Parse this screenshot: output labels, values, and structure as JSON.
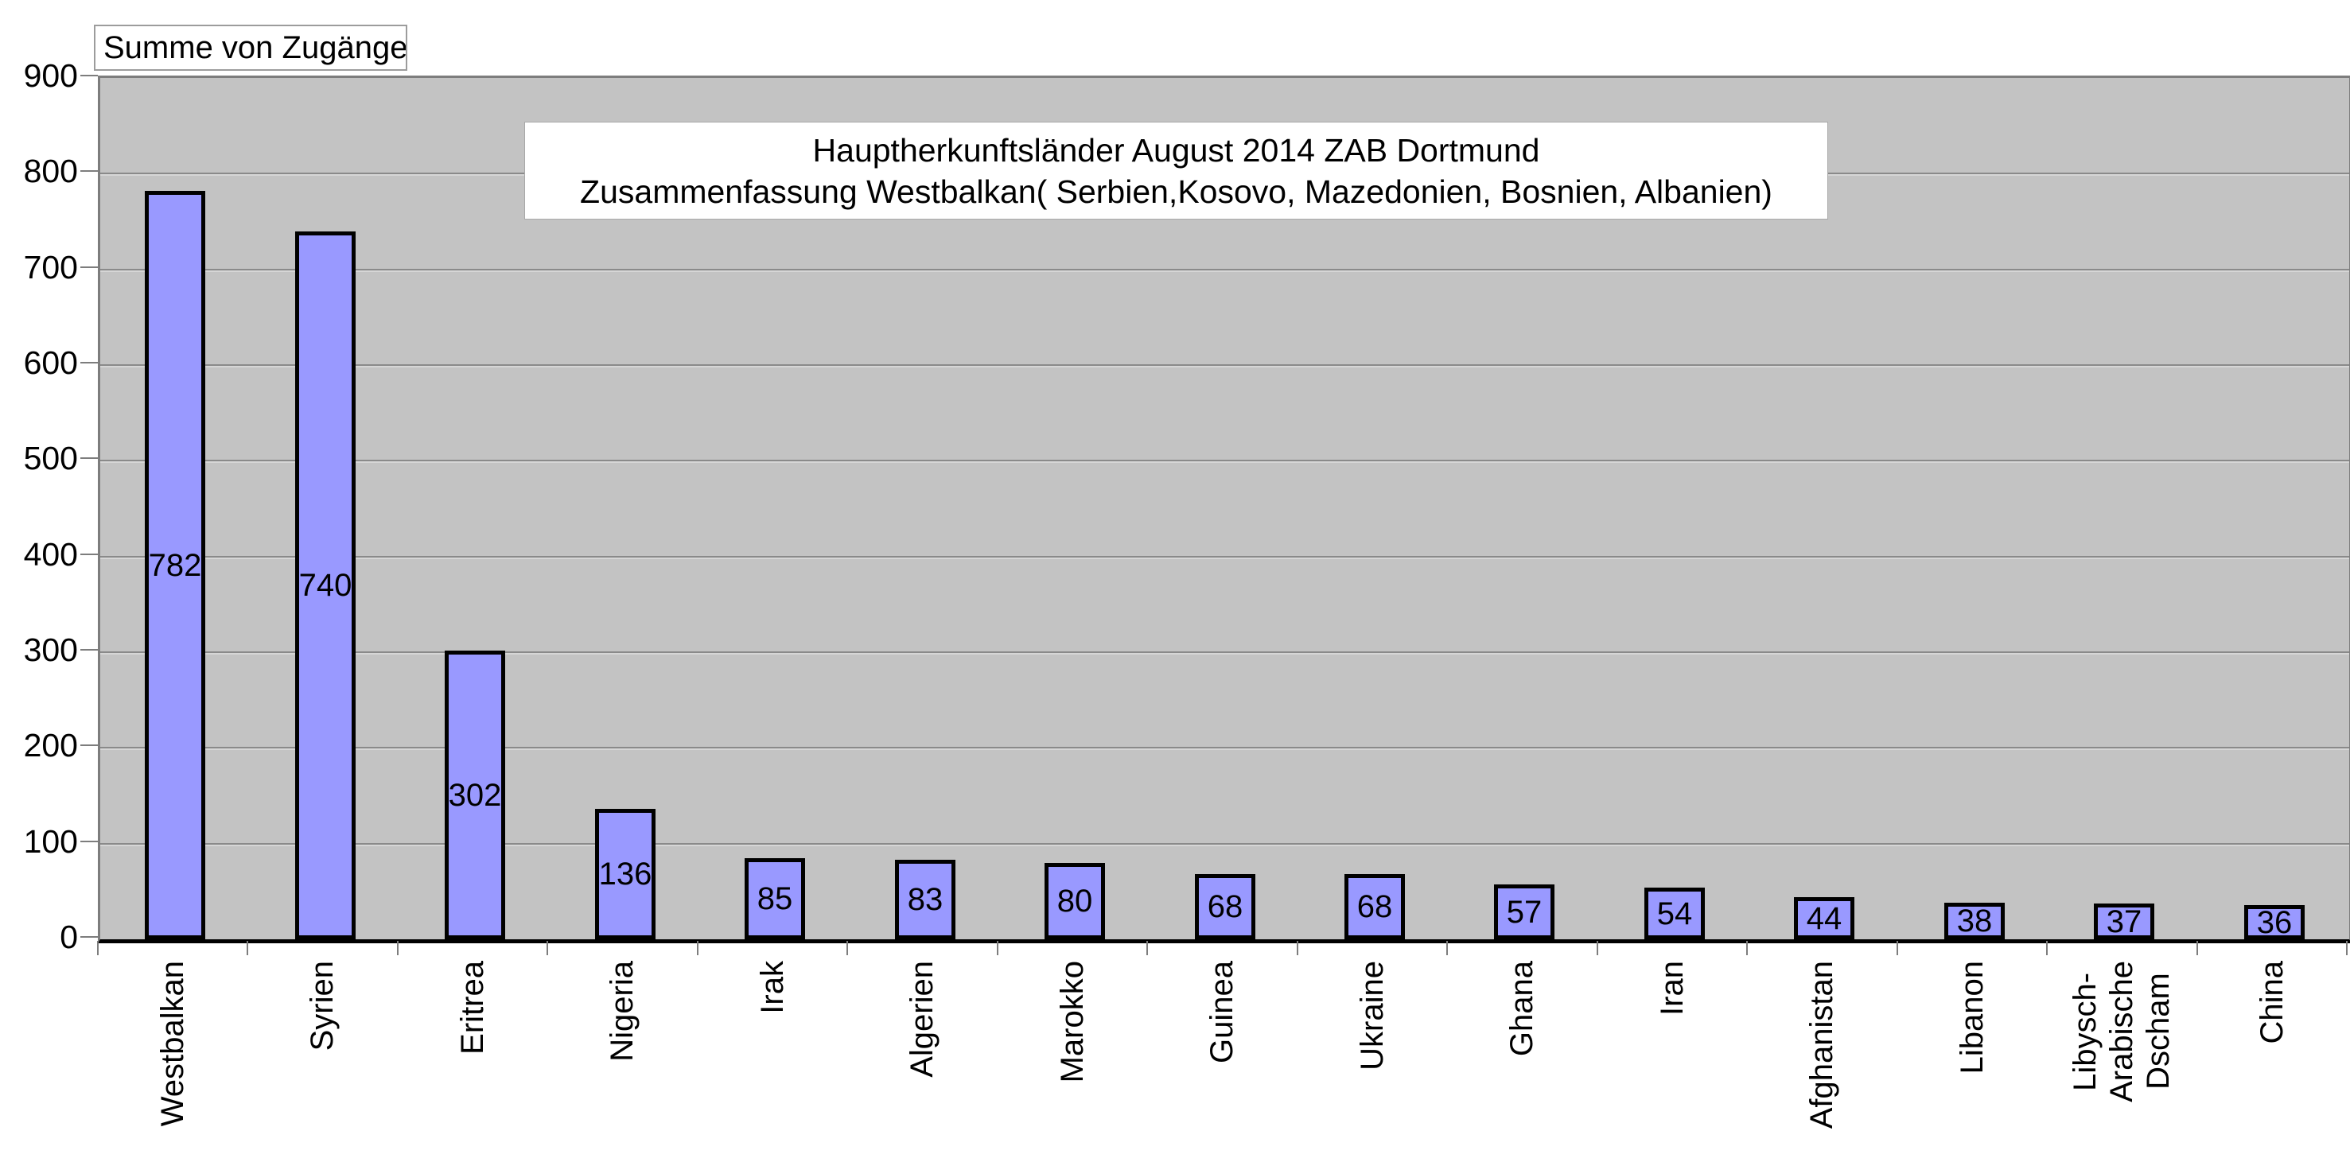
{
  "field_button": {
    "label": "Summe von Zugänge"
  },
  "title": {
    "line1": "Hauptherkunftsländer August 2014 ZAB Dortmund",
    "line2": "Zusammenfassung Westbalkan( Serbien,Kosovo, Mazedonien, Bosnien, Albanien)"
  },
  "chart_data": {
    "type": "bar",
    "title": "Hauptherkunftsländer August 2014 ZAB Dortmund\nZusammenfassung Westbalkan( Serbien,Kosovo, Mazedonien, Bosnien, Albanien)",
    "series_label": "Summe von Zugänge",
    "categories": [
      "Westbalkan",
      "Syrien",
      "Eritrea",
      "Nigeria",
      "Irak",
      "Algerien",
      "Marokko",
      "Guinea",
      "Ukraine",
      "Ghana",
      "Iran",
      "Afghanistan",
      "Libanon",
      "Libysch-\nArabische\nDscham",
      "China"
    ],
    "values": [
      782,
      740,
      302,
      136,
      85,
      83,
      80,
      68,
      68,
      57,
      54,
      44,
      38,
      37,
      36
    ],
    "data_labels_shown": true,
    "xlabel": "",
    "ylabel": "",
    "ylim": [
      0,
      900
    ],
    "ytick_interval": 100,
    "yticks": [
      900,
      800,
      700,
      600,
      500,
      400,
      300,
      200,
      100,
      0
    ],
    "grid": true,
    "legend_position": "none",
    "colors": {
      "bar_fill": "#9999FF",
      "bar_border": "#000000",
      "plot_bg": "#C3C3C3",
      "gridline": "#8A8A8A",
      "border": "#7D7D7D",
      "axis": "#000000",
      "page_bg": "#FFFFFF"
    }
  }
}
